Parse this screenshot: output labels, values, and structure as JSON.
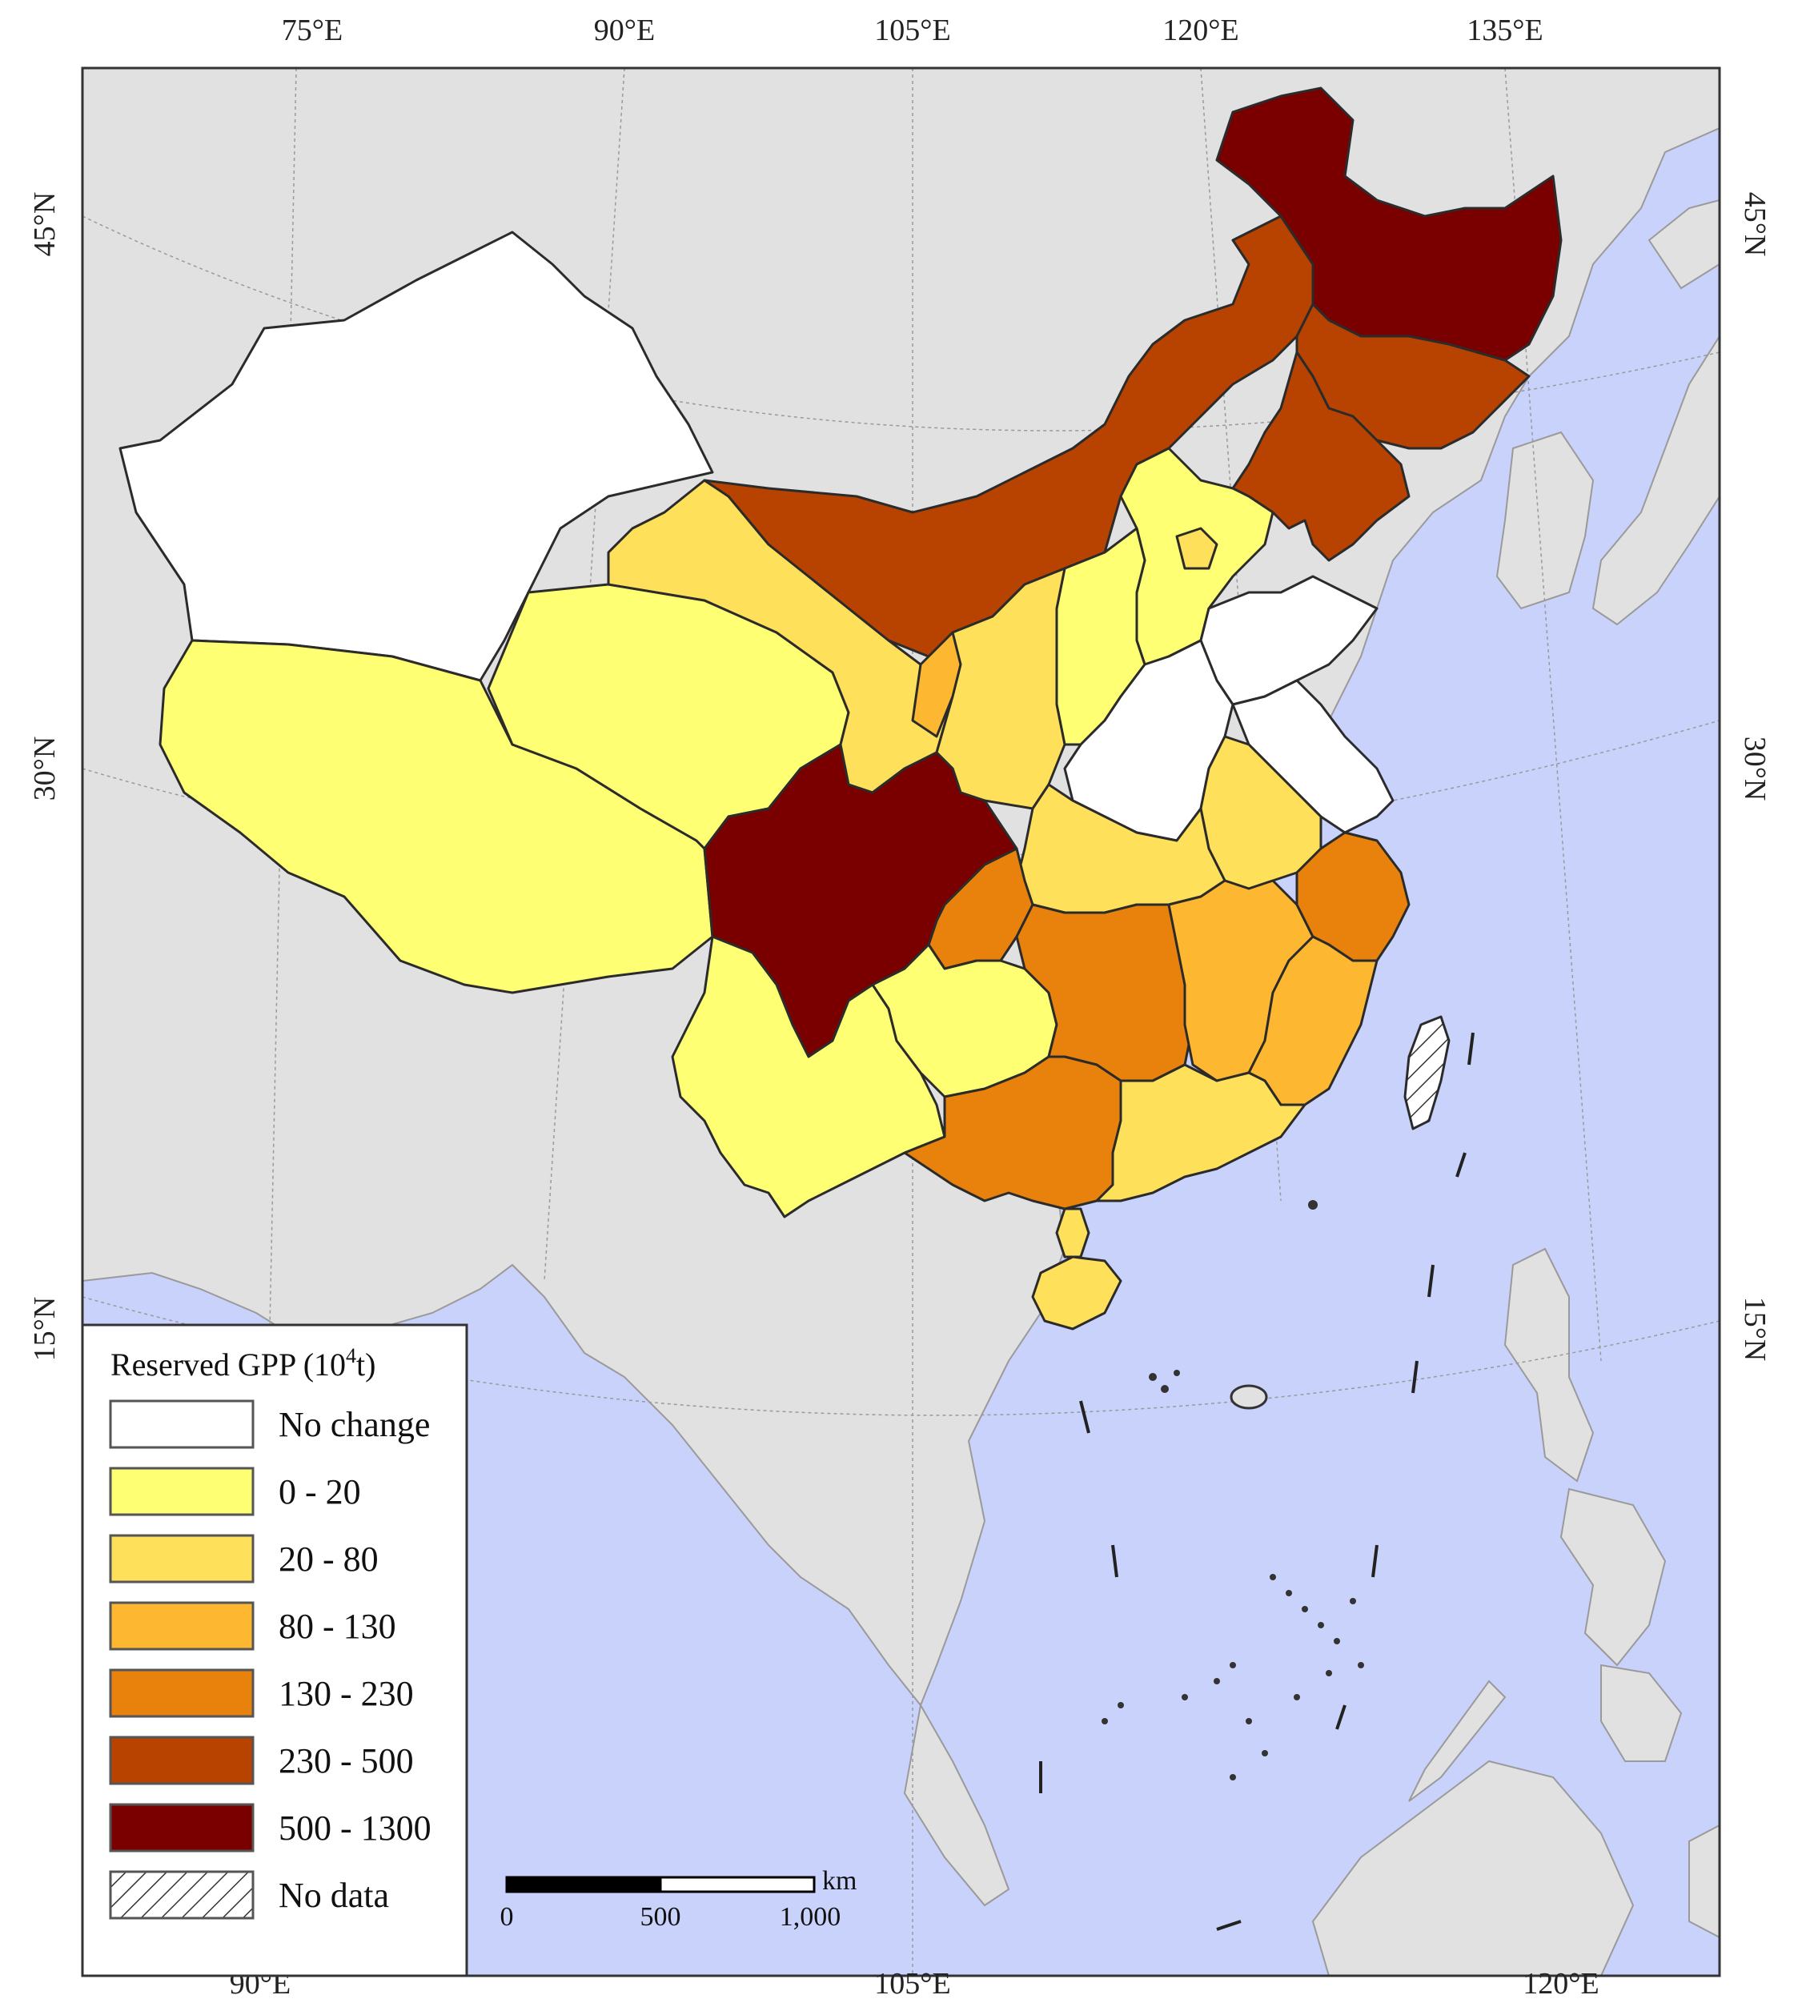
{
  "colors": {
    "ocean": "#c8d2fa",
    "land": "#e1e1e1",
    "border": "#2b2b2b",
    "grid": "#999999",
    "no_change": "#ffffff",
    "c0_20": "#ffff73",
    "c20_80": "#ffe05a",
    "c80_130": "#fdb730",
    "c130_230": "#e8820c",
    "c230_500": "#b84300",
    "c500_1300": "#7a0000"
  },
  "map": {
    "top_ticks": [
      "75°E",
      "90°E",
      "105°E",
      "120°E",
      "135°E"
    ],
    "bottom_ticks": [
      "90°E",
      "105°E",
      "120°E"
    ],
    "left_ticks": [
      "45°N",
      "30°N",
      "15°N"
    ],
    "right_ticks": [
      "45°N",
      "30°N",
      "15°N"
    ]
  },
  "legend": {
    "title": "Reserved GPP (10",
    "title_sup": "4",
    "title_end": "t)",
    "items": [
      {
        "label": "No change",
        "color": "#ffffff",
        "hatch": false
      },
      {
        "label": "0 - 20",
        "color": "#ffff73",
        "hatch": false
      },
      {
        "label": "20 - 80",
        "color": "#ffe05a",
        "hatch": false
      },
      {
        "label": "80 - 130",
        "color": "#fdb730",
        "hatch": false
      },
      {
        "label": "130 - 230",
        "color": "#e8820c",
        "hatch": false
      },
      {
        "label": "230 - 500",
        "color": "#b84300",
        "hatch": false
      },
      {
        "label": "500 - 1300",
        "color": "#7a0000",
        "hatch": false
      },
      {
        "label": "No data",
        "color": "#ffffff",
        "hatch": true
      }
    ]
  },
  "scale_bar": {
    "unit": "km",
    "labels": [
      "0",
      "500",
      "1,000"
    ]
  }
}
